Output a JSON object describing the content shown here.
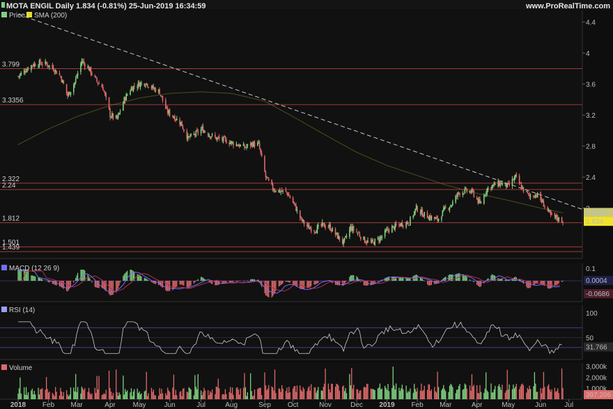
{
  "header": {
    "title": "MOTA ENGIL Daily 1.834 (-0.81%) 25-Jun-2019 16:34:59",
    "site": "www.ProRealTime.com"
  },
  "legend": {
    "price": "Price",
    "sma": "SMA (200)",
    "macd": "MACD (12 26 9)",
    "rsi": "RSI (14)",
    "volume": "Volume"
  },
  "colors": {
    "up": "#7fd07f",
    "down": "#e06a6a",
    "sma": "#8a8a2a",
    "trend": "#c8c8c8",
    "level_line": "#a33a3a",
    "macd_line": "#7070ff",
    "signal_line": "#b03050",
    "rsi_line": "#cfcfcf",
    "price_tag_bg": "#f2e22a",
    "sma_tag_bg": "#c8c878"
  },
  "chart_data": [
    {
      "type": "candlestick",
      "panel": "price",
      "title": "MOTA ENGIL Daily",
      "y_ticks": [
        "4.4",
        "4",
        "3.6",
        "3.2",
        "2.8",
        "2.4",
        "2"
      ],
      "ylim": [
        1.35,
        4.55
      ],
      "horizontal_levels": [
        {
          "label": "3.799",
          "value": 3.799
        },
        {
          "label": "3.3356",
          "value": 3.3356
        },
        {
          "label": "2.322",
          "value": 2.322
        },
        {
          "label": "2.24",
          "value": 2.24
        },
        {
          "label": "1.812",
          "value": 1.812
        },
        {
          "label": "1.501",
          "value": 1.501
        },
        {
          "label": "1.439",
          "value": 1.439
        }
      ],
      "last_price_label": "1.834",
      "sma_value_label": "1.9394",
      "trendline": {
        "from": [
          "2018-01-02",
          4.5
        ],
        "to": [
          "2019-07-01",
          1.92
        ]
      },
      "close_series": [
        [
          "2018-01-02",
          3.7
        ],
        [
          "2018-01-09",
          3.78
        ],
        [
          "2018-01-16",
          3.85
        ],
        [
          "2018-01-23",
          3.87
        ],
        [
          "2018-01-30",
          3.86
        ],
        [
          "2018-02-06",
          3.8
        ],
        [
          "2018-02-13",
          3.7
        ],
        [
          "2018-02-20",
          3.45
        ],
        [
          "2018-02-27",
          3.62
        ],
        [
          "2018-03-06",
          3.9
        ],
        [
          "2018-03-13",
          3.8
        ],
        [
          "2018-03-20",
          3.65
        ],
        [
          "2018-03-27",
          3.55
        ],
        [
          "2018-04-03",
          3.2
        ],
        [
          "2018-04-10",
          3.15
        ],
        [
          "2018-04-17",
          3.4
        ],
        [
          "2018-04-24",
          3.55
        ],
        [
          "2018-05-01",
          3.6
        ],
        [
          "2018-05-08",
          3.62
        ],
        [
          "2018-05-15",
          3.55
        ],
        [
          "2018-05-22",
          3.5
        ],
        [
          "2018-05-29",
          3.25
        ],
        [
          "2018-06-05",
          3.18
        ],
        [
          "2018-06-12",
          3.1
        ],
        [
          "2018-06-19",
          2.9
        ],
        [
          "2018-06-26",
          2.95
        ],
        [
          "2018-07-03",
          3.02
        ],
        [
          "2018-07-10",
          2.95
        ],
        [
          "2018-07-17",
          2.9
        ],
        [
          "2018-07-24",
          2.88
        ],
        [
          "2018-07-31",
          2.85
        ],
        [
          "2018-08-07",
          2.82
        ],
        [
          "2018-08-14",
          2.78
        ],
        [
          "2018-08-21",
          2.83
        ],
        [
          "2018-08-28",
          2.82
        ],
        [
          "2018-09-04",
          2.4
        ],
        [
          "2018-09-11",
          2.25
        ],
        [
          "2018-09-18",
          2.22
        ],
        [
          "2018-09-25",
          2.2
        ],
        [
          "2018-10-02",
          2.05
        ],
        [
          "2018-10-09",
          1.85
        ],
        [
          "2018-10-16",
          1.75
        ],
        [
          "2018-10-23",
          1.72
        ],
        [
          "2018-10-30",
          1.78
        ],
        [
          "2018-11-06",
          1.76
        ],
        [
          "2018-11-13",
          1.65
        ],
        [
          "2018-11-20",
          1.55
        ],
        [
          "2018-11-27",
          1.75
        ],
        [
          "2018-12-04",
          1.68
        ],
        [
          "2018-12-11",
          1.58
        ],
        [
          "2018-12-18",
          1.55
        ],
        [
          "2018-12-27",
          1.62
        ],
        [
          "2019-01-03",
          1.72
        ],
        [
          "2019-01-10",
          1.76
        ],
        [
          "2019-01-17",
          1.8
        ],
        [
          "2019-01-24",
          1.82
        ],
        [
          "2019-01-31",
          2.0
        ],
        [
          "2019-02-07",
          1.92
        ],
        [
          "2019-02-14",
          1.88
        ],
        [
          "2019-02-21",
          1.85
        ],
        [
          "2019-02-28",
          1.98
        ],
        [
          "2019-03-07",
          2.05
        ],
        [
          "2019-03-14",
          2.2
        ],
        [
          "2019-03-21",
          2.22
        ],
        [
          "2019-03-28",
          2.2
        ],
        [
          "2019-04-04",
          2.05
        ],
        [
          "2019-04-11",
          2.25
        ],
        [
          "2019-04-18",
          2.3
        ],
        [
          "2019-04-25",
          2.32
        ],
        [
          "2019-05-02",
          2.28
        ],
        [
          "2019-05-09",
          2.4
        ],
        [
          "2019-05-16",
          2.25
        ],
        [
          "2019-05-23",
          2.15
        ],
        [
          "2019-05-30",
          2.18
        ],
        [
          "2019-06-06",
          2.05
        ],
        [
          "2019-06-13",
          1.9
        ],
        [
          "2019-06-18",
          1.88
        ],
        [
          "2019-06-21",
          1.86
        ],
        [
          "2019-06-25",
          1.834
        ]
      ]
    },
    {
      "type": "line",
      "panel": "macd",
      "title": "MACD (12 26 9)",
      "y_ticks": [
        "0.1"
      ],
      "labels": [
        "0.0004",
        "-0.0686"
      ]
    },
    {
      "type": "line",
      "panel": "rsi",
      "title": "RSI (14)",
      "y_ticks": [
        "100",
        "50"
      ],
      "levels": [
        70,
        30
      ],
      "last_value_label": "31.766"
    },
    {
      "type": "bar",
      "panel": "volume",
      "title": "Volume",
      "y_ticks": [
        "3,000k",
        "2,000k",
        "1,000k"
      ],
      "last_value_label": "397,206"
    }
  ],
  "x_axis": {
    "labels": [
      "2018",
      "Feb",
      "Mar",
      "Apr",
      "May",
      "Jun",
      "Jul",
      "Aug",
      "Sep",
      "Oct",
      "Nov",
      "Dec",
      "2019",
      "Feb",
      "Mar",
      "Apr",
      "May",
      "Jun",
      "Jul"
    ]
  }
}
